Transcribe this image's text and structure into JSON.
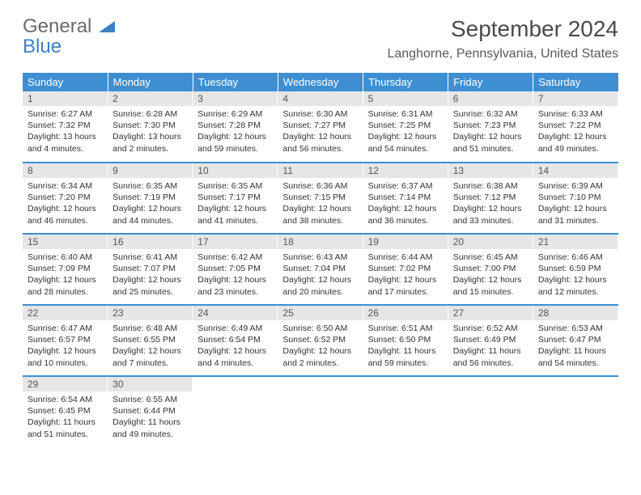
{
  "logo": {
    "line1": "General",
    "line2": "Blue"
  },
  "title": "September 2024",
  "location": "Langhorne, Pennsylvania, United States",
  "colors": {
    "header_bg": "#3d8fd1",
    "header_text": "#ffffff",
    "daynum_bg": "#e6e6e6",
    "border": "#3d8fd1",
    "logo_gray": "#6b6b6b",
    "logo_blue": "#3d7fc1"
  },
  "weekdays": [
    "Sunday",
    "Monday",
    "Tuesday",
    "Wednesday",
    "Thursday",
    "Friday",
    "Saturday"
  ],
  "weeks": [
    [
      {
        "n": "1",
        "sr": "Sunrise: 6:27 AM",
        "ss": "Sunset: 7:32 PM",
        "dl": "Daylight: 13 hours and 4 minutes."
      },
      {
        "n": "2",
        "sr": "Sunrise: 6:28 AM",
        "ss": "Sunset: 7:30 PM",
        "dl": "Daylight: 13 hours and 2 minutes."
      },
      {
        "n": "3",
        "sr": "Sunrise: 6:29 AM",
        "ss": "Sunset: 7:28 PM",
        "dl": "Daylight: 12 hours and 59 minutes."
      },
      {
        "n": "4",
        "sr": "Sunrise: 6:30 AM",
        "ss": "Sunset: 7:27 PM",
        "dl": "Daylight: 12 hours and 56 minutes."
      },
      {
        "n": "5",
        "sr": "Sunrise: 6:31 AM",
        "ss": "Sunset: 7:25 PM",
        "dl": "Daylight: 12 hours and 54 minutes."
      },
      {
        "n": "6",
        "sr": "Sunrise: 6:32 AM",
        "ss": "Sunset: 7:23 PM",
        "dl": "Daylight: 12 hours and 51 minutes."
      },
      {
        "n": "7",
        "sr": "Sunrise: 6:33 AM",
        "ss": "Sunset: 7:22 PM",
        "dl": "Daylight: 12 hours and 49 minutes."
      }
    ],
    [
      {
        "n": "8",
        "sr": "Sunrise: 6:34 AM",
        "ss": "Sunset: 7:20 PM",
        "dl": "Daylight: 12 hours and 46 minutes."
      },
      {
        "n": "9",
        "sr": "Sunrise: 6:35 AM",
        "ss": "Sunset: 7:19 PM",
        "dl": "Daylight: 12 hours and 44 minutes."
      },
      {
        "n": "10",
        "sr": "Sunrise: 6:35 AM",
        "ss": "Sunset: 7:17 PM",
        "dl": "Daylight: 12 hours and 41 minutes."
      },
      {
        "n": "11",
        "sr": "Sunrise: 6:36 AM",
        "ss": "Sunset: 7:15 PM",
        "dl": "Daylight: 12 hours and 38 minutes."
      },
      {
        "n": "12",
        "sr": "Sunrise: 6:37 AM",
        "ss": "Sunset: 7:14 PM",
        "dl": "Daylight: 12 hours and 36 minutes."
      },
      {
        "n": "13",
        "sr": "Sunrise: 6:38 AM",
        "ss": "Sunset: 7:12 PM",
        "dl": "Daylight: 12 hours and 33 minutes."
      },
      {
        "n": "14",
        "sr": "Sunrise: 6:39 AM",
        "ss": "Sunset: 7:10 PM",
        "dl": "Daylight: 12 hours and 31 minutes."
      }
    ],
    [
      {
        "n": "15",
        "sr": "Sunrise: 6:40 AM",
        "ss": "Sunset: 7:09 PM",
        "dl": "Daylight: 12 hours and 28 minutes."
      },
      {
        "n": "16",
        "sr": "Sunrise: 6:41 AM",
        "ss": "Sunset: 7:07 PM",
        "dl": "Daylight: 12 hours and 25 minutes."
      },
      {
        "n": "17",
        "sr": "Sunrise: 6:42 AM",
        "ss": "Sunset: 7:05 PM",
        "dl": "Daylight: 12 hours and 23 minutes."
      },
      {
        "n": "18",
        "sr": "Sunrise: 6:43 AM",
        "ss": "Sunset: 7:04 PM",
        "dl": "Daylight: 12 hours and 20 minutes."
      },
      {
        "n": "19",
        "sr": "Sunrise: 6:44 AM",
        "ss": "Sunset: 7:02 PM",
        "dl": "Daylight: 12 hours and 17 minutes."
      },
      {
        "n": "20",
        "sr": "Sunrise: 6:45 AM",
        "ss": "Sunset: 7:00 PM",
        "dl": "Daylight: 12 hours and 15 minutes."
      },
      {
        "n": "21",
        "sr": "Sunrise: 6:46 AM",
        "ss": "Sunset: 6:59 PM",
        "dl": "Daylight: 12 hours and 12 minutes."
      }
    ],
    [
      {
        "n": "22",
        "sr": "Sunrise: 6:47 AM",
        "ss": "Sunset: 6:57 PM",
        "dl": "Daylight: 12 hours and 10 minutes."
      },
      {
        "n": "23",
        "sr": "Sunrise: 6:48 AM",
        "ss": "Sunset: 6:55 PM",
        "dl": "Daylight: 12 hours and 7 minutes."
      },
      {
        "n": "24",
        "sr": "Sunrise: 6:49 AM",
        "ss": "Sunset: 6:54 PM",
        "dl": "Daylight: 12 hours and 4 minutes."
      },
      {
        "n": "25",
        "sr": "Sunrise: 6:50 AM",
        "ss": "Sunset: 6:52 PM",
        "dl": "Daylight: 12 hours and 2 minutes."
      },
      {
        "n": "26",
        "sr": "Sunrise: 6:51 AM",
        "ss": "Sunset: 6:50 PM",
        "dl": "Daylight: 11 hours and 59 minutes."
      },
      {
        "n": "27",
        "sr": "Sunrise: 6:52 AM",
        "ss": "Sunset: 6:49 PM",
        "dl": "Daylight: 11 hours and 56 minutes."
      },
      {
        "n": "28",
        "sr": "Sunrise: 6:53 AM",
        "ss": "Sunset: 6:47 PM",
        "dl": "Daylight: 11 hours and 54 minutes."
      }
    ],
    [
      {
        "n": "29",
        "sr": "Sunrise: 6:54 AM",
        "ss": "Sunset: 6:45 PM",
        "dl": "Daylight: 11 hours and 51 minutes."
      },
      {
        "n": "30",
        "sr": "Sunrise: 6:55 AM",
        "ss": "Sunset: 6:44 PM",
        "dl": "Daylight: 11 hours and 49 minutes."
      },
      null,
      null,
      null,
      null,
      null
    ]
  ]
}
